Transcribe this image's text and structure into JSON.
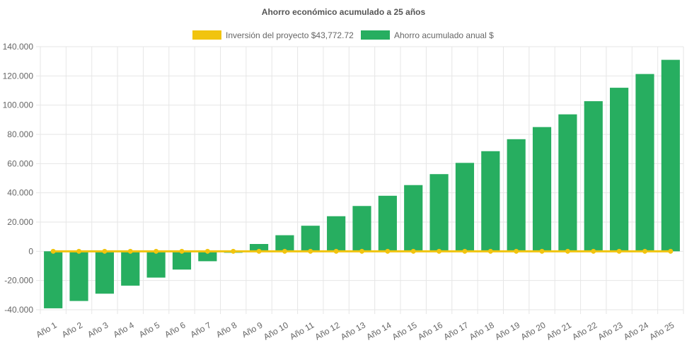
{
  "chart_data": {
    "type": "bar",
    "title": "Ahorro económico acumulado a 25 años",
    "categories": [
      "Año 1",
      "Año 2",
      "Año 3",
      "Año 4",
      "Año 5",
      "Año 6",
      "Año 7",
      "Año 8",
      "Año 9",
      "Año 10",
      "Año 11",
      "Año 12",
      "Año 13",
      "Año 14",
      "Año 15",
      "Año 16",
      "Año 17",
      "Año 18",
      "Año 19",
      "Año 20",
      "Año 21",
      "Año 22",
      "Año 23",
      "Año 24",
      "Año 25"
    ],
    "series": [
      {
        "name": "Inversión del proyecto $43,772.72",
        "type": "line",
        "color": "#f1c40f",
        "values": [
          0,
          0,
          0,
          0,
          0,
          0,
          0,
          0,
          0,
          0,
          0,
          0,
          0,
          0,
          0,
          0,
          0,
          0,
          0,
          0,
          0,
          0,
          0,
          0,
          0
        ]
      },
      {
        "name": "Ahorro acumulado anual $",
        "type": "bar",
        "color": "#27ae60",
        "values": [
          -39000,
          -34000,
          -29000,
          -23500,
          -18000,
          -12500,
          -6800,
          -1000,
          5000,
          11000,
          17500,
          24000,
          31000,
          38000,
          45300,
          52800,
          60500,
          68500,
          76700,
          85000,
          93700,
          102700,
          111900,
          121300,
          131000
        ]
      }
    ],
    "yticks": [
      "140.000",
      "120.000",
      "100.000",
      "80.000",
      "60.000",
      "40.000",
      "20.000",
      "0",
      "-20.000",
      "-40.000"
    ],
    "ylim": [
      -40000,
      140000
    ],
    "legend_position": "top",
    "grid": true
  }
}
